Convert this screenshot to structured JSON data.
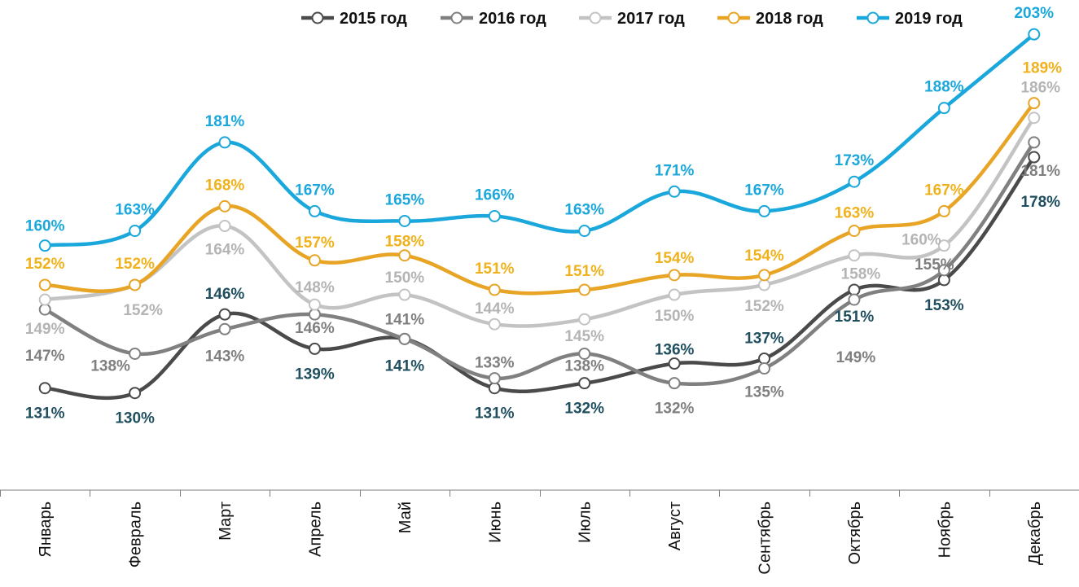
{
  "chart_data": {
    "type": "line",
    "title": "",
    "xlabel": "",
    "ylabel": "",
    "categories": [
      "Январь",
      "Февраль",
      "Март",
      "Апрель",
      "Май",
      "Июнь",
      "Июль",
      "Август",
      "Сентябрь",
      "Октябрь",
      "Ноябрь",
      "Декабрь"
    ],
    "ylim": [
      94,
      207
    ],
    "grid": false,
    "legend": "top",
    "value_suffix": "%",
    "series": [
      {
        "name": "2015 год",
        "color": "#4a4a4a",
        "label_color": "#1f4e5f",
        "values": [
          131,
          130,
          146,
          139,
          141,
          131,
          132,
          136,
          137,
          151,
          153,
          178
        ]
      },
      {
        "name": "2016 год",
        "color": "#808080",
        "label_color": "#7f7f7f",
        "values": [
          147,
          138,
          143,
          146,
          141,
          133,
          138,
          132,
          135,
          149,
          155,
          181
        ]
      },
      {
        "name": "2017 год",
        "color": "#c3c3c3",
        "label_color": "#b4b4b4",
        "values": [
          149,
          152,
          164,
          148,
          150,
          144,
          145,
          150,
          152,
          158,
          160,
          186
        ]
      },
      {
        "name": "2018 год",
        "color": "#e8a425",
        "label_color": "#f0b21c",
        "values": [
          152,
          152,
          168,
          157,
          158,
          151,
          151,
          154,
          154,
          163,
          167,
          189
        ]
      },
      {
        "name": "2019 год",
        "color": "#1aa7dc",
        "label_color": "#1aa7dc",
        "values": [
          160,
          163,
          181,
          167,
          165,
          166,
          163,
          171,
          167,
          173,
          188,
          203
        ]
      }
    ]
  }
}
